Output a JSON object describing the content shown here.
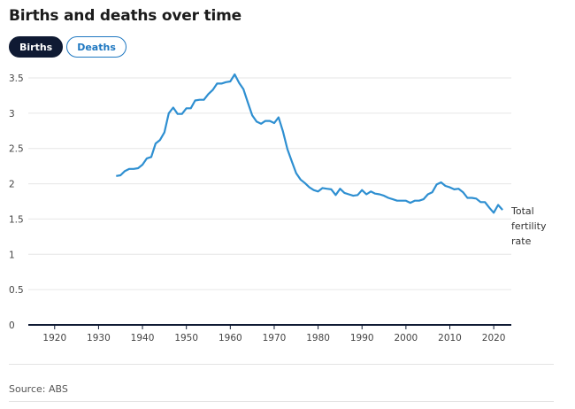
{
  "header": {
    "title": "Births and deaths over time"
  },
  "tabs": [
    {
      "label": "Births",
      "active": true
    },
    {
      "label": "Deaths",
      "active": false
    }
  ],
  "colors": {
    "line": "#2e8fd1",
    "accent": "#1f78c1",
    "active_tab": "#0f1a33"
  },
  "chart_data": {
    "type": "line",
    "title": "",
    "xlabel": "",
    "ylabel": "",
    "xlim": [
      1914,
      2024
    ],
    "ylim": [
      0,
      3.5
    ],
    "xticks": [
      1920,
      1930,
      1940,
      1950,
      1960,
      1970,
      1980,
      1990,
      2000,
      2010,
      2020
    ],
    "yticks": [
      0,
      0.5,
      1,
      1.5,
      2,
      2.5,
      3,
      3.5
    ],
    "ytick_labels": [
      "0",
      "0.5",
      "1",
      "1.5",
      "2",
      "2.5",
      "3",
      "3.5"
    ],
    "grid": true,
    "series": [
      {
        "name": "Total fertility rate",
        "x": [
          1934,
          1935,
          1936,
          1937,
          1938,
          1939,
          1940,
          1941,
          1942,
          1943,
          1944,
          1945,
          1946,
          1947,
          1948,
          1949,
          1950,
          1951,
          1952,
          1953,
          1954,
          1955,
          1956,
          1957,
          1958,
          1959,
          1960,
          1961,
          1962,
          1963,
          1964,
          1965,
          1966,
          1967,
          1968,
          1969,
          1970,
          1971,
          1972,
          1973,
          1974,
          1975,
          1976,
          1977,
          1978,
          1979,
          1980,
          1981,
          1982,
          1983,
          1984,
          1985,
          1986,
          1987,
          1988,
          1989,
          1990,
          1991,
          1992,
          1993,
          1994,
          1995,
          1996,
          1997,
          1998,
          1999,
          2000,
          2001,
          2002,
          2003,
          2004,
          2005,
          2006,
          2007,
          2008,
          2009,
          2010,
          2011,
          2012,
          2013,
          2014,
          2015,
          2016,
          2017,
          2018,
          2019,
          2020,
          2021,
          2022
        ],
        "y": [
          2.11,
          2.12,
          2.18,
          2.21,
          2.21,
          2.22,
          2.27,
          2.36,
          2.38,
          2.57,
          2.62,
          2.73,
          3.0,
          3.08,
          2.99,
          2.99,
          3.07,
          3.07,
          3.18,
          3.19,
          3.19,
          3.27,
          3.33,
          3.42,
          3.42,
          3.44,
          3.45,
          3.55,
          3.43,
          3.34,
          3.15,
          2.97,
          2.88,
          2.85,
          2.89,
          2.89,
          2.86,
          2.94,
          2.74,
          2.49,
          2.32,
          2.15,
          2.06,
          2.01,
          1.95,
          1.91,
          1.89,
          1.94,
          1.93,
          1.92,
          1.84,
          1.93,
          1.87,
          1.85,
          1.83,
          1.84,
          1.91,
          1.85,
          1.89,
          1.86,
          1.85,
          1.83,
          1.8,
          1.78,
          1.76,
          1.76,
          1.76,
          1.73,
          1.76,
          1.76,
          1.78,
          1.85,
          1.88,
          1.99,
          2.02,
          1.97,
          1.95,
          1.92,
          1.93,
          1.88,
          1.8,
          1.8,
          1.79,
          1.74,
          1.74,
          1.66,
          1.59,
          1.7,
          1.63
        ]
      }
    ],
    "series_label": [
      "Total",
      "fertility",
      "rate"
    ]
  },
  "footer": {
    "source": "Source: ABS"
  }
}
